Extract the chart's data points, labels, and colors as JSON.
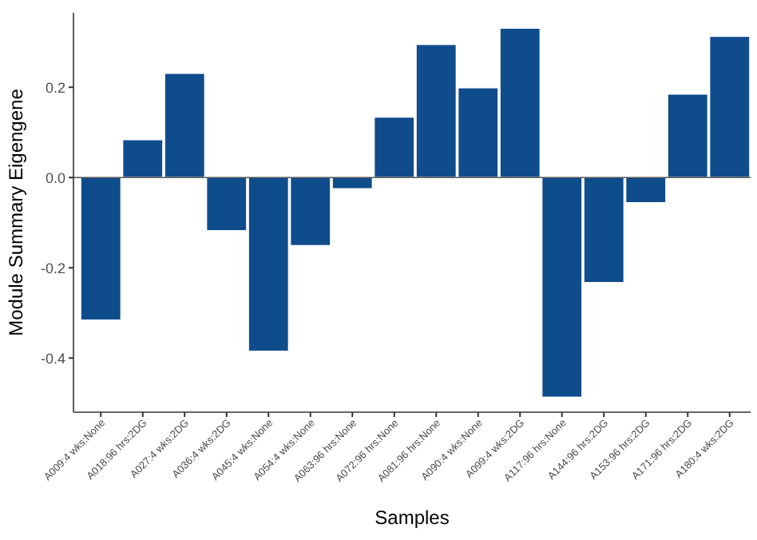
{
  "chart_data": {
    "type": "bar",
    "xlabel": "Samples",
    "ylabel": "Module Summary Eigengene",
    "categories": [
      "A009:4 wks:None",
      "A018:96 hrs:2DG",
      "A027:4 wks:2DG",
      "A036:4 wks:2DG",
      "A045:4 wks:None",
      "A054:4 wks:None",
      "A063:96 hrs:None",
      "A072:96 hrs:None",
      "A081:96 hrs:None",
      "A090:4 wks:None",
      "A099:4 wks:2DG",
      "A117:96 hrs:None",
      "A144:96 hrs:2DG",
      "A153:96 hrs:2DG",
      "A171:96 hrs:2DG",
      "A180:4 wks:2DG"
    ],
    "values": [
      -0.316,
      0.084,
      0.231,
      -0.118,
      -0.385,
      -0.151,
      -0.025,
      0.134,
      0.295,
      0.199,
      0.331,
      -0.487,
      -0.233,
      -0.056,
      0.185,
      0.313
    ],
    "color": "#0f4c8c",
    "ylim": [
      -0.52,
      0.365
    ],
    "yticks": [
      {
        "value": -0.4,
        "label": "-0.4"
      },
      {
        "value": -0.2,
        "label": "-0.2"
      },
      {
        "value": 0,
        "label": "0.0"
      },
      {
        "value": 0.2,
        "label": "0.2"
      }
    ],
    "ref_lines": [
      {
        "axis": "y",
        "value": 0,
        "color": "#555555"
      }
    ],
    "grid": false
  }
}
